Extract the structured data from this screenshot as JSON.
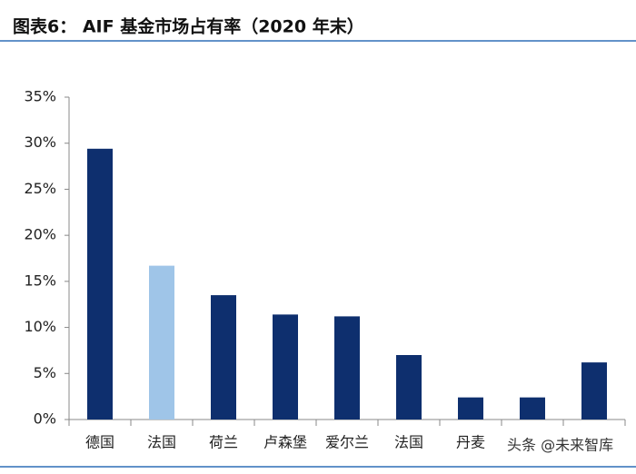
{
  "chart_data": {
    "type": "bar",
    "title": "图表6： AIF 基金市场占有率（2020 年末）",
    "categories": [
      "德国",
      "法国",
      "荷兰",
      "卢森堡",
      "爱尔兰",
      "法国",
      "丹麦",
      null,
      null
    ],
    "values": [
      29.4,
      16.7,
      13.5,
      11.4,
      11.2,
      7.0,
      2.4,
      2.4,
      6.2
    ],
    "colors": [
      "#0e2f6e",
      "#9fc5e8",
      "#0e2f6e",
      "#0e2f6e",
      "#0e2f6e",
      "#0e2f6e",
      "#0e2f6e",
      "#0e2f6e",
      "#0e2f6e"
    ],
    "ylim": [
      0,
      35
    ],
    "yticks": [
      {
        "value": 0,
        "label": "0%"
      },
      {
        "value": 5,
        "label": "5%"
      },
      {
        "value": 10,
        "label": "10%"
      },
      {
        "value": 15,
        "label": "15%"
      },
      {
        "value": 20,
        "label": "20%"
      },
      {
        "value": 25,
        "label": "25%"
      },
      {
        "value": 30,
        "label": "30%"
      },
      {
        "value": 35,
        "label": "35%"
      }
    ],
    "grid": false,
    "watermark": "头条 @未来智库"
  }
}
